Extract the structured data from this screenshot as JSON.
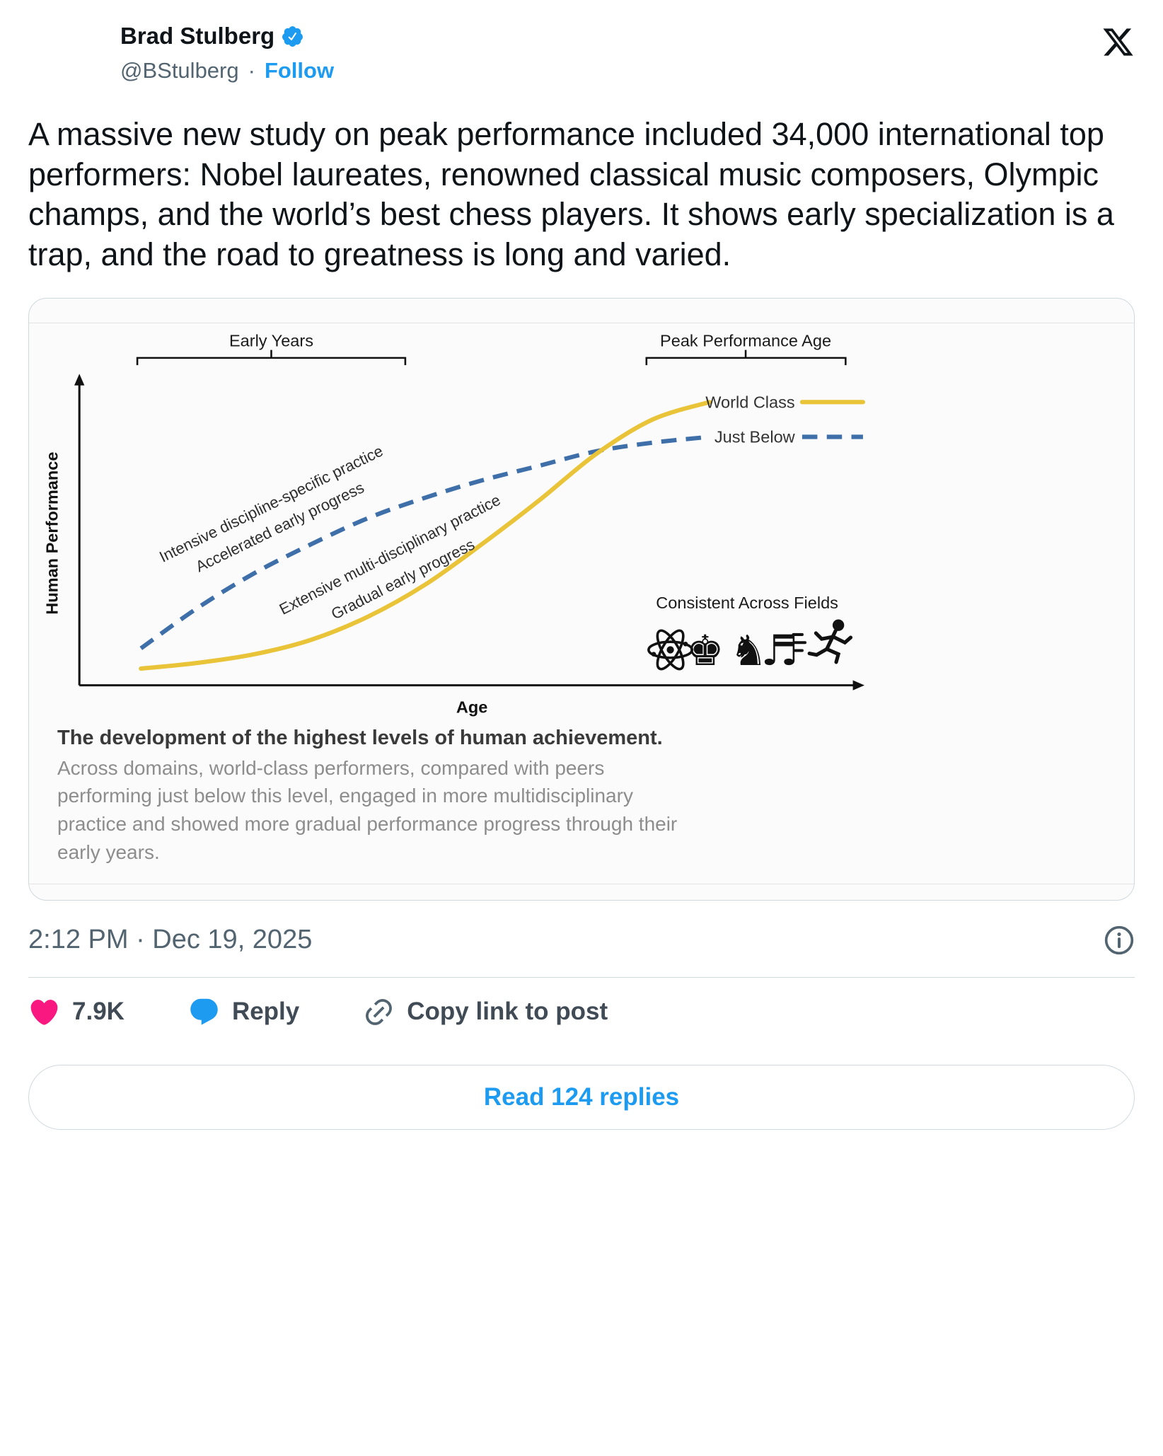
{
  "colors": {
    "accent_blue": "#1d9bf0",
    "like_pink": "#f91880",
    "text_primary": "#0f1419",
    "text_secondary": "#536471",
    "card_border": "#cfd9de",
    "curve_world_class": "#e9c338",
    "curve_just_below": "#3e6fa9"
  },
  "header": {
    "name": "Brad Stulberg",
    "handle": "@BStulberg",
    "separator": "·",
    "follow_label": "Follow"
  },
  "tweet": {
    "text": "A massive new study on peak performance included 34,000 international top performers: Nobel laureates, renowned classical music composers, Olympic champs, and the world’s best chess players. It shows early specialization is a trap, and the road to greatness is long and varied."
  },
  "figure": {
    "caption_title": "The development of the highest levels of human achievement.",
    "caption_body": "Across domains, world-class performers, compared with peers performing just below this level, engaged in more multidisciplinary practice and showed more gradual performance progress through their early years.",
    "icon_glyphs": {
      "chess": "♚♞",
      "music": "♬"
    },
    "icon_names": [
      "atom-icon",
      "chess-pieces-icon",
      "music-note-icon",
      "sprinter-icon"
    ]
  },
  "chart_data": {
    "type": "line",
    "title": "",
    "xlabel": "Age",
    "ylabel": "Human Performance",
    "axes_unlabeled": true,
    "grid": false,
    "legend_position": "right-end-labels",
    "x_range_relative": [
      0,
      10
    ],
    "y_range_relative": [
      0,
      100
    ],
    "annotations": {
      "early_years": "Early Years",
      "peak_performance_age": "Peak Performance Age",
      "world_class": "World Class",
      "just_below": "Just Below",
      "dashed_curve_line1": "Intensive discipline-specific practice",
      "dashed_curve_line2": "Accelerated early progress",
      "solid_curve_line1": "Extensive multi-disciplinary practice",
      "solid_curve_line2": "Gradual early progress",
      "icons_caption": "Consistent Across Fields"
    },
    "series": [
      {
        "name": "World Class",
        "style": "solid",
        "color": "#e9c338",
        "x": [
          0,
          1,
          2,
          3,
          4,
          5,
          6,
          7,
          8,
          9,
          10
        ],
        "values": [
          4,
          6,
          9,
          14,
          22,
          33,
          47,
          62,
          78,
          90,
          96
        ]
      },
      {
        "name": "Just Below",
        "style": "dashed",
        "color": "#3e6fa9",
        "x": [
          0,
          1,
          2,
          3,
          4,
          5,
          6,
          7,
          8,
          9,
          10
        ],
        "values": [
          11,
          25,
          37,
          47,
          56,
          63,
          69,
          74,
          79,
          82,
          84
        ]
      }
    ]
  },
  "meta": {
    "timestamp": "2:12 PM · Dec 19, 2025"
  },
  "engagement": {
    "likes": "7.9K",
    "reply_label": "Reply",
    "copy_link_label": "Copy link to post"
  },
  "footer": {
    "read_replies_label": "Read 124 replies"
  }
}
